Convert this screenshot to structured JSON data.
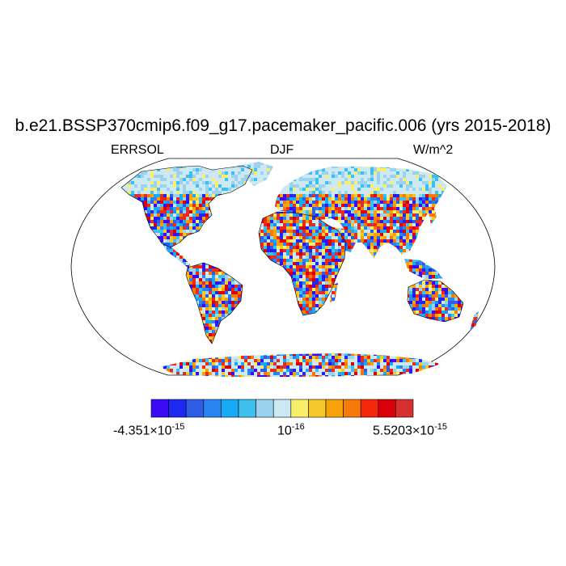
{
  "title": "b.e21.BSSP370cmip6.f09_g17.pacemaker_pacific.006 (yrs 2015-2018)",
  "left_label": "ERRSOL",
  "center_label": "DJF",
  "right_label": "W/m^2",
  "projection": "Robinson",
  "colorbar": {
    "colors": [
      "#3a0bf2",
      "#1f28f0",
      "#2f5ee6",
      "#2a84f2",
      "#19aaf7",
      "#3dc0f0",
      "#9bd3ef",
      "#cce8f3",
      "#f8ee6c",
      "#f6c72a",
      "#f7a208",
      "#f57a0a",
      "#f5280c",
      "#da0009",
      "#d63030"
    ],
    "min_mantissa": "-4.351",
    "mid_base": "10",
    "mid_exp": "-16",
    "max_mantissa": "5.5203",
    "times_base": "×10",
    "exp_main": "-15"
  }
}
